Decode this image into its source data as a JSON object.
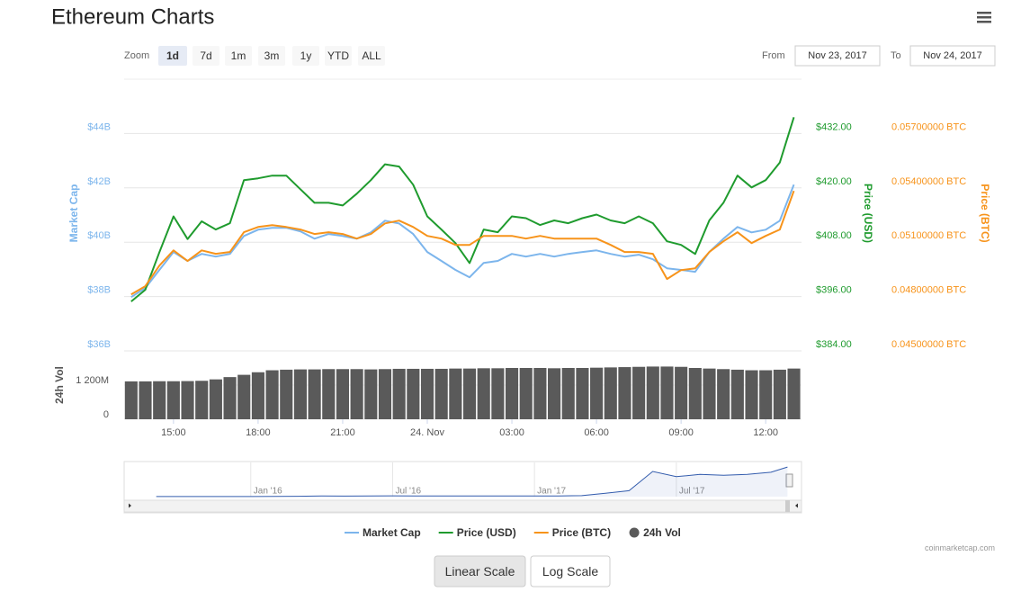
{
  "header": {
    "title": "Ethereum Charts"
  },
  "zoom": {
    "label": "Zoom",
    "options": [
      "1d",
      "7d",
      "1m",
      "3m",
      "1y",
      "YTD",
      "ALL"
    ],
    "selected": "1d"
  },
  "range": {
    "from_label": "From",
    "from": "Nov 23, 2017",
    "to_label": "To",
    "to": "Nov 24, 2017"
  },
  "chart_data": {
    "type": "line",
    "x": [
      13.5,
      14,
      14.5,
      15,
      15.5,
      16,
      16.5,
      17,
      17.5,
      18,
      18.5,
      19,
      19.5,
      20,
      20.5,
      21,
      21.5,
      22,
      22.5,
      23,
      23.5,
      24,
      24.5,
      25,
      25.5,
      26,
      26.5,
      27,
      27.5,
      28,
      28.5,
      29,
      29.5,
      30,
      30.5,
      31,
      31.5,
      32,
      32.5,
      33,
      33.5,
      34,
      34.5,
      35,
      35.5,
      36,
      36.5,
      37
    ],
    "xlim": [
      13.25,
      37.27
    ],
    "xticks": [
      {
        "value": 15,
        "label": "15:00"
      },
      {
        "value": 18,
        "label": "18:00"
      },
      {
        "value": 21,
        "label": "21:00"
      },
      {
        "value": 24,
        "label": "24. Nov"
      },
      {
        "value": 27,
        "label": "03:00"
      },
      {
        "value": 30,
        "label": "06:00"
      },
      {
        "value": 33,
        "label": "09:00"
      },
      {
        "value": 36,
        "label": "12:00"
      }
    ],
    "y_label": "Market Cap",
    "ylim": [
      36,
      46
    ],
    "yticks": [
      {
        "value": 36,
        "label": "$36B"
      },
      {
        "value": 38,
        "label": "$38B"
      },
      {
        "value": 40,
        "label": "$40B"
      },
      {
        "value": 42,
        "label": "$42B"
      },
      {
        "value": 44,
        "label": "$44B"
      }
    ],
    "y2_label": "Price (USD)",
    "y2lim": [
      384,
      444
    ],
    "y2ticks": [
      {
        "value": 384,
        "label": "$384.00"
      },
      {
        "value": 396,
        "label": "$396.00"
      },
      {
        "value": 408,
        "label": "$408.00"
      },
      {
        "value": 420,
        "label": "$420.00"
      },
      {
        "value": 432,
        "label": "$432.00"
      }
    ],
    "y3_label": "Price (BTC)",
    "y3lim": [
      0.045,
      0.06
    ],
    "y3ticks": [
      {
        "value": 0.045,
        "label": "0.04500000 BTC"
      },
      {
        "value": 0.048,
        "label": "0.04800000 BTC"
      },
      {
        "value": 0.051,
        "label": "0.05100000 BTC"
      },
      {
        "value": 0.054,
        "label": "0.05400000 BTC"
      },
      {
        "value": 0.057,
        "label": "0.05700000 BTC"
      }
    ],
    "grid": true,
    "series": [
      {
        "name": "Market Cap",
        "color": "#7cb5ec",
        "axis": "y",
        "values": [
          37.98,
          38.31,
          38.98,
          39.64,
          39.31,
          39.57,
          39.47,
          39.57,
          40.23,
          40.46,
          40.53,
          40.53,
          40.4,
          40.13,
          40.3,
          40.23,
          40.13,
          40.36,
          40.79,
          40.69,
          40.3,
          39.64,
          39.31,
          38.98,
          38.71,
          39.24,
          39.31,
          39.57,
          39.47,
          39.57,
          39.47,
          39.57,
          39.64,
          39.7,
          39.57,
          39.47,
          39.54,
          39.37,
          39.04,
          38.98,
          38.91,
          39.64,
          40.13,
          40.56,
          40.36,
          40.46,
          40.79,
          42.12
        ]
      },
      {
        "name": "Price (USD)",
        "color": "#1f9b2e",
        "axis": "y2",
        "values": [
          394.9,
          397.5,
          405.8,
          413.7,
          408.7,
          412.6,
          410.8,
          412.2,
          421.7,
          422.1,
          422.7,
          422.7,
          419.7,
          416.7,
          416.7,
          416.1,
          418.7,
          421.7,
          425.2,
          424.7,
          420.7,
          413.7,
          410.8,
          407.8,
          403.4,
          410.8,
          410.2,
          413.7,
          413.3,
          411.8,
          412.8,
          412.2,
          413.3,
          414.1,
          412.8,
          412.2,
          413.7,
          412.2,
          408.2,
          407.4,
          405.4,
          412.8,
          416.7,
          422.7,
          420.1,
          421.7,
          425.6,
          435.6
        ]
      },
      {
        "name": "Price (BTC)",
        "color": "#f7931a",
        "axis": "y3",
        "values": [
          0.04812,
          0.04857,
          0.04971,
          0.05055,
          0.04996,
          0.05055,
          0.05036,
          0.05046,
          0.05155,
          0.05184,
          0.05194,
          0.05184,
          0.0517,
          0.05145,
          0.05155,
          0.05145,
          0.0512,
          0.05145,
          0.05204,
          0.05219,
          0.05184,
          0.05135,
          0.0512,
          0.05085,
          0.05085,
          0.05135,
          0.05135,
          0.05135,
          0.0512,
          0.05135,
          0.0512,
          0.0512,
          0.0512,
          0.0512,
          0.05085,
          0.05046,
          0.05046,
          0.05036,
          0.04897,
          0.04946,
          0.04956,
          0.05046,
          0.05105,
          0.05155,
          0.05095,
          0.05135,
          0.0517,
          0.05383
        ]
      }
    ],
    "volume": {
      "type": "bar",
      "name": "24h Vol",
      "color": "#5a5a5a",
      "ylim": [
        0,
        2400
      ],
      "yticks": [
        0,
        {
          "value": 1200,
          "label": "1 200M"
        }
      ],
      "values": [
        1330,
        1330,
        1335,
        1335,
        1340,
        1350,
        1400,
        1480,
        1560,
        1650,
        1720,
        1740,
        1750,
        1750,
        1760,
        1760,
        1760,
        1750,
        1760,
        1770,
        1770,
        1770,
        1770,
        1780,
        1780,
        1790,
        1790,
        1800,
        1800,
        1800,
        1790,
        1800,
        1800,
        1810,
        1820,
        1830,
        1840,
        1850,
        1850,
        1840,
        1800,
        1780,
        1760,
        1740,
        1720,
        1720,
        1740,
        1780
      ]
    },
    "navigator": {
      "type": "area",
      "color": "#335cad",
      "x": [
        -4,
        -3,
        -2,
        -1,
        0,
        1,
        2,
        3,
        4,
        5,
        6,
        7,
        8,
        9,
        10,
        11,
        12,
        13,
        14,
        15,
        16,
        17,
        18,
        19,
        20,
        21,
        22,
        22.7
      ],
      "values": [
        0.1,
        0.08,
        0.07,
        0.07,
        0.07,
        0.2,
        0.5,
        0.9,
        0.7,
        1.0,
        1.1,
        0.9,
        1.0,
        1.0,
        1.0,
        0.9,
        0.8,
        1.0,
        1.3,
        4.5,
        8.0,
        34,
        27,
        30,
        29,
        30,
        33,
        40
      ],
      "xlim": [
        -4.9,
        22.8
      ],
      "ylim": [
        0,
        45
      ],
      "xticks": [
        {
          "value": 0,
          "label": "Jan '16"
        },
        {
          "value": 6,
          "label": "Jul '16"
        },
        {
          "value": 12,
          "label": "Jan '17"
        },
        {
          "value": 18,
          "label": "Jul '17"
        }
      ]
    }
  },
  "scale_buttons": {
    "options": [
      "Linear Scale",
      "Log Scale"
    ],
    "selected": "Linear Scale"
  },
  "credit": "coinmarketcap.com"
}
